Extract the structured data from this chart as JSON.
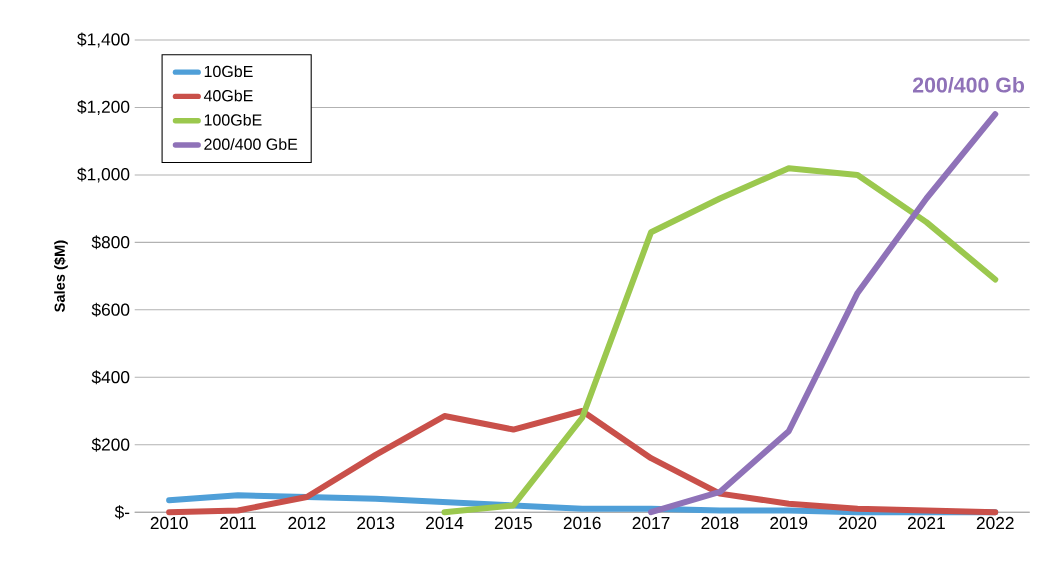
{
  "chart_data": {
    "type": "line",
    "ylabel": "Sales ($M)",
    "annotations": [
      "200/400 Gb"
    ],
    "xlim": [
      2009.5,
      2022.5
    ],
    "xticks": [
      2010,
      2011,
      2012,
      2013,
      2014,
      2015,
      2016,
      2017,
      2018,
      2019,
      2020,
      2021,
      2022
    ],
    "ylim": [
      0,
      1400
    ],
    "yticks": [
      {
        "value": 0,
        "label": "$-"
      },
      {
        "value": 200,
        "label": "$200"
      },
      {
        "value": 400,
        "label": "$400"
      },
      {
        "value": 600,
        "label": "$600"
      },
      {
        "value": 800,
        "label": "$800"
      },
      {
        "value": 1000,
        "label": "$1,000"
      },
      {
        "value": 1200,
        "label": "$1,200"
      },
      {
        "value": 1400,
        "label": "$1,400"
      }
    ],
    "grid": "y",
    "legend": "top left",
    "marker": "none",
    "line_style": "solid",
    "series": [
      {
        "name": "10GbE",
        "color": "#4f9fd8",
        "x": [
          2010,
          2011,
          2012,
          2013,
          2014,
          2015,
          2016,
          2017,
          2018,
          2019,
          2020,
          2021,
          2022
        ],
        "values": [
          35,
          50,
          45,
          40,
          30,
          20,
          10,
          10,
          5,
          5,
          0,
          0,
          0
        ]
      },
      {
        "name": "40GbE",
        "color": "#c9504a",
        "x": [
          2010,
          2011,
          2012,
          2013,
          2014,
          2015,
          2016,
          2017,
          2018,
          2019,
          2020,
          2021,
          2022
        ],
        "values": [
          0,
          5,
          45,
          170,
          285,
          245,
          300,
          160,
          55,
          25,
          10,
          5,
          0
        ]
      },
      {
        "name": "100GbE",
        "color": "#9bc84e",
        "x": [
          2014,
          2015,
          2016,
          2017,
          2018,
          2019,
          2020,
          2021,
          2022
        ],
        "values": [
          0,
          20,
          280,
          830,
          930,
          1020,
          1000,
          860,
          690
        ]
      },
      {
        "name": "200/400 GbE",
        "color": "#8f72b8",
        "x": [
          2017,
          2018,
          2019,
          2020,
          2021,
          2022
        ],
        "values": [
          0,
          60,
          240,
          650,
          930,
          1180
        ]
      }
    ]
  }
}
